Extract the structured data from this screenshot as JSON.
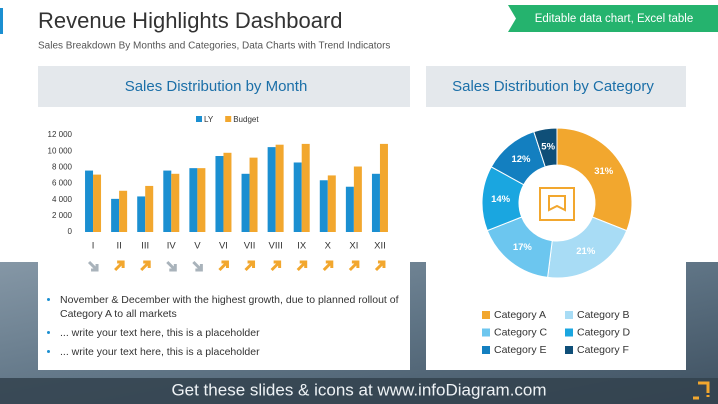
{
  "header": {
    "title": "Revenue Highlights Dashboard",
    "subtitle": "Sales Breakdown By Months and Categories, Data Charts with Trend Indicators",
    "tag": "Editable data chart, Excel table"
  },
  "chart_data": [
    {
      "type": "bar",
      "title": "Sales Distribution by Month",
      "categories": [
        "I",
        "II",
        "III",
        "IV",
        "V",
        "VI",
        "VII",
        "VIII",
        "IX",
        "X",
        "XI",
        "XII"
      ],
      "series": [
        {
          "name": "LY",
          "color": "#1b8fd1",
          "values": [
            7600,
            4100,
            4400,
            7600,
            7900,
            9400,
            7200,
            10500,
            8600,
            6400,
            5600,
            7200
          ]
        },
        {
          "name": "Budget",
          "color": "#f2a72e",
          "values": [
            7100,
            5100,
            5700,
            7200,
            7900,
            9800,
            9200,
            10800,
            10900,
            7000,
            8100,
            10900
          ]
        }
      ],
      "ylim": [
        0,
        12000
      ],
      "yticks": [
        0,
        {
          "value": 2000,
          "label": "2 000"
        },
        {
          "value": 4000,
          "label": "4 000"
        },
        {
          "value": 6000,
          "label": "6 000"
        },
        {
          "value": 8000,
          "label": "8 000"
        },
        {
          "value": 10000,
          "label": "10 000"
        },
        {
          "value": 12000,
          "label": "12 000"
        }
      ],
      "trends": [
        "down",
        "up",
        "up",
        "down",
        "down",
        "up",
        "up",
        "up",
        "up",
        "up",
        "up",
        "up"
      ],
      "trend_colors": {
        "up": "#f2a72e",
        "down": "#a9b3bb"
      }
    },
    {
      "type": "pie",
      "title": "Sales Distribution by Category",
      "donut": true,
      "categories": [
        "Category A",
        "Category B",
        "Category C",
        "Category D",
        "Category E",
        "Category F"
      ],
      "values": [
        31,
        21,
        17,
        14,
        12,
        5
      ],
      "value_labels": [
        "31%",
        "21%",
        "17%",
        "14%",
        "12%",
        "5%"
      ],
      "colors": [
        "#f2a72e",
        "#a8dcf5",
        "#6cc6ef",
        "#1aa6e0",
        "#137fc0",
        "#0f4f78"
      ]
    }
  ],
  "bullets": [
    "November & December with the highest growth, due to planned rollout of Category A to all markets",
    "... write your text here, this is a placeholder",
    "... write your text here, this is a placeholder"
  ],
  "footer": "Get these slides & icons at www.infoDiagram.com"
}
